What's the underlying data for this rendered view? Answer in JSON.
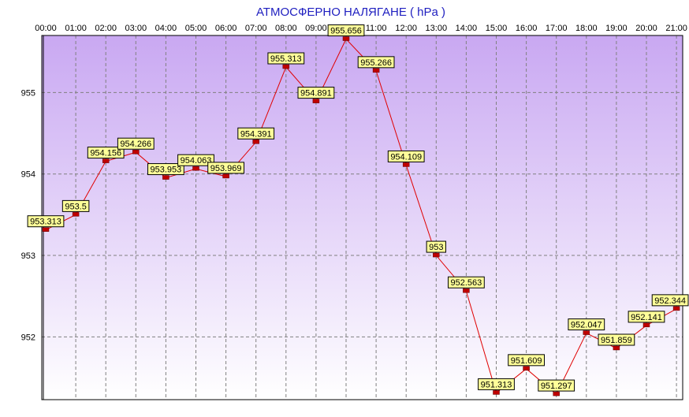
{
  "chart_data": {
    "type": "line",
    "title": "АТМОСФЕРНО НАЛЯГАНЕ  ( hPa )",
    "xlabel": "",
    "ylabel": "",
    "categories": [
      "00:00",
      "01:00",
      "02:00",
      "03:00",
      "04:00",
      "05:00",
      "06:00",
      "07:00",
      "08:00",
      "09:00",
      "10:00",
      "11:00",
      "12:00",
      "13:00",
      "14:00",
      "15:00",
      "16:00",
      "17:00",
      "18:00",
      "19:00",
      "20:00",
      "21:00"
    ],
    "series": [
      {
        "values": [
          953.313,
          953.5,
          954.156,
          954.266,
          953.953,
          954.063,
          953.969,
          954.391,
          955.313,
          954.891,
          955.656,
          955.266,
          954.109,
          953,
          952.563,
          951.313,
          951.609,
          951.297,
          952.047,
          951.859,
          952.141,
          952.344
        ],
        "labels": [
          "953.313",
          "953.5",
          "954.156",
          "954.266",
          "953.953",
          "954.063",
          "953.969",
          "954.391",
          "955.313",
          "954.891",
          "955.656",
          "955.266",
          "954.109",
          "953",
          "952.563",
          "951.313",
          "951.609",
          "951.297",
          "952.047",
          "951.859",
          "952.141",
          "952.344"
        ]
      }
    ],
    "yticks": [
      952,
      953,
      954,
      955
    ],
    "ytick_labels": [
      "952",
      "953",
      "954",
      "955"
    ],
    "ylim": [
      951.23,
      955.7
    ],
    "grid": true,
    "legend": "none",
    "colors": {
      "background": "#ffffff",
      "plot_top": "#c9a8f2",
      "plot_bottom": "#ffffff",
      "line": "#e00000",
      "marker": "#c00000",
      "label_box": "#ffff99",
      "title": "#2020c0",
      "grid": "#808080"
    }
  }
}
